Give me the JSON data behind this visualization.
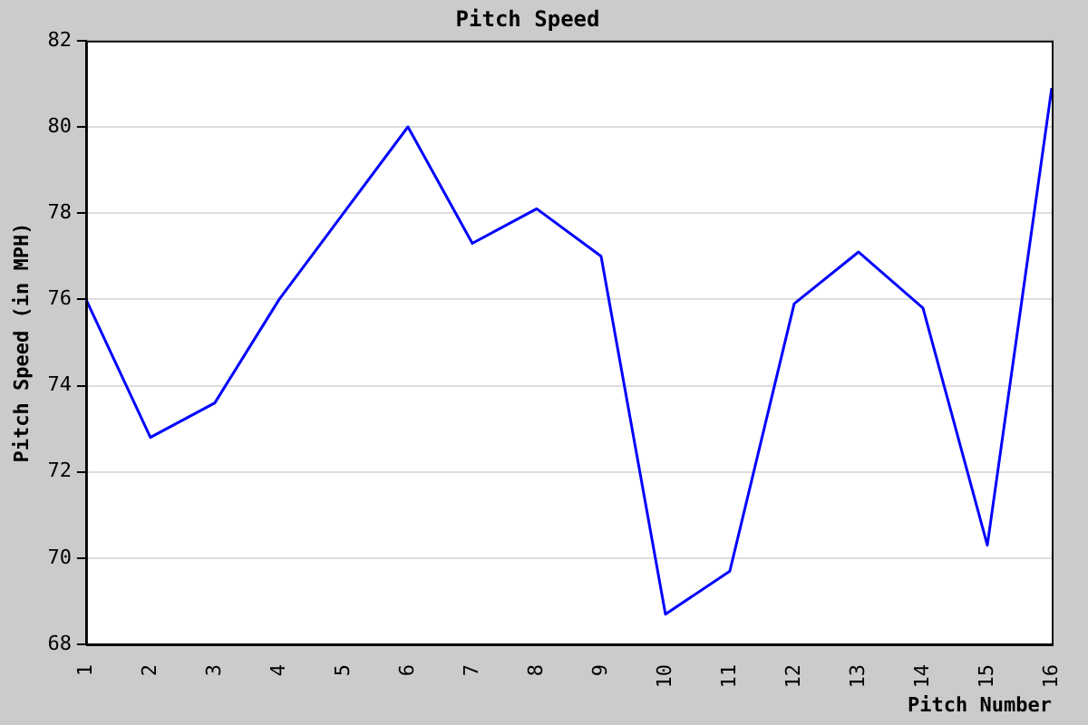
{
  "chart_data": {
    "type": "line",
    "title": "Pitch Speed",
    "xlabel": "Pitch Number",
    "ylabel": "Pitch Speed (in MPH)",
    "categories": [
      "1",
      "2",
      "3",
      "4",
      "5",
      "6",
      "7",
      "8",
      "9",
      "10",
      "11",
      "12",
      "13",
      "14",
      "15",
      "16"
    ],
    "series": [
      {
        "color": "#0000ff",
        "values": [
          76.0,
          72.8,
          73.6,
          76.0,
          78.0,
          80.0,
          77.3,
          78.1,
          77.0,
          68.7,
          69.7,
          75.9,
          77.1,
          75.8,
          70.3,
          80.9
        ]
      }
    ],
    "ylim": [
      68,
      82
    ],
    "yticks": [
      68,
      70,
      72,
      74,
      76,
      78,
      80,
      82
    ],
    "grid": "y",
    "legend": false,
    "marker": "none",
    "line_style": "solid"
  }
}
